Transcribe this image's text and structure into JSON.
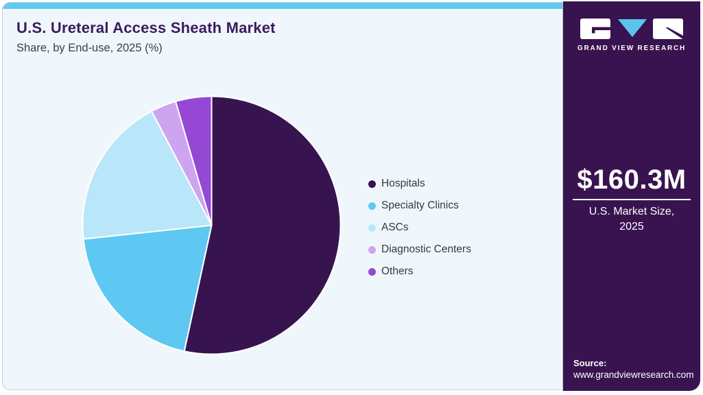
{
  "header": {
    "title": "U.S. Ureteral Access Sheath Market",
    "subtitle": "Share, by End-use, 2025 (%)"
  },
  "chart_data": {
    "type": "pie",
    "title": "U.S. Ureteral Access Sheath Market Share, by End-use, 2025 (%)",
    "categories": [
      "Hospitals",
      "Specialty Clinics",
      "ASCs",
      "Diagnostic Centers",
      "Others"
    ],
    "values": [
      53.4,
      19.9,
      19.0,
      3.2,
      4.5
    ],
    "unit": "%",
    "colors": [
      "#371450",
      "#5ec8f2",
      "#b9e6f9",
      "#cda4ef",
      "#9448d3"
    ],
    "legend_position": "right",
    "start_angle_deg": 0,
    "direction": "clockwise"
  },
  "sidebar": {
    "brand": "GRAND VIEW RESEARCH",
    "market_size": {
      "value": "$160.3M",
      "label_line1": "U.S. Market Size,",
      "label_line2": "2025"
    },
    "source": {
      "label": "Source:",
      "url": "www.grandviewresearch.com"
    }
  },
  "theme": {
    "accent_bar": "#62c9f2",
    "card_bg": "#f0f7fc",
    "sidebar_bg": "#39134f",
    "title_color": "#3b1b5e",
    "logo_triangle": "#5bc4ee"
  }
}
